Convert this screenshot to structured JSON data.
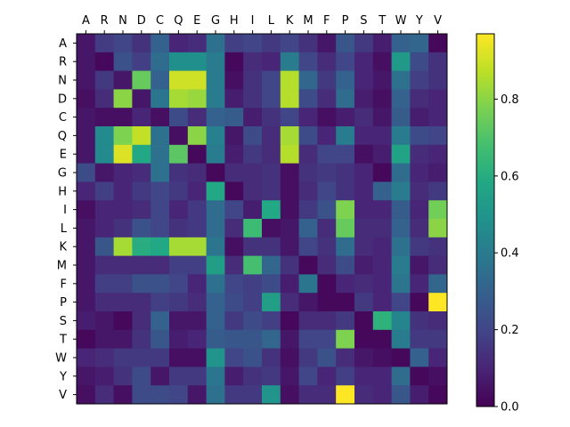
{
  "chart_data": {
    "type": "heatmap",
    "title": "",
    "xlabel": "",
    "ylabel": "",
    "x_categories": [
      "A",
      "R",
      "N",
      "D",
      "C",
      "Q",
      "E",
      "G",
      "H",
      "I",
      "L",
      "K",
      "M",
      "F",
      "P",
      "S",
      "T",
      "W",
      "Y",
      "V"
    ],
    "y_categories": [
      "A",
      "R",
      "N",
      "D",
      "C",
      "Q",
      "E",
      "G",
      "H",
      "I",
      "L",
      "K",
      "M",
      "F",
      "P",
      "S",
      "T",
      "W",
      "Y",
      "V"
    ],
    "x_tick_position": "top",
    "colormap": "viridis",
    "colorbar": {
      "min": 0.0,
      "max": 0.97,
      "ticks": [
        0.0,
        0.2,
        0.4,
        0.6,
        0.8
      ],
      "tick_labels": [
        "0.0",
        "0.2",
        "0.4",
        "0.6",
        "0.8"
      ]
    },
    "values": [
      [
        0.06,
        0.17,
        0.2,
        0.14,
        0.3,
        0.1,
        0.12,
        0.36,
        0.18,
        0.2,
        0.16,
        0.2,
        0.14,
        0.06,
        0.26,
        0.16,
        0.08,
        0.3,
        0.32,
        0.02
      ],
      [
        0.06,
        0.02,
        0.24,
        0.18,
        0.34,
        0.48,
        0.48,
        0.4,
        0.02,
        0.12,
        0.1,
        0.4,
        0.2,
        0.12,
        0.2,
        0.1,
        0.04,
        0.52,
        0.22,
        0.14
      ],
      [
        0.06,
        0.16,
        0.06,
        0.74,
        0.3,
        0.9,
        0.9,
        0.4,
        0.04,
        0.14,
        0.2,
        0.86,
        0.32,
        0.16,
        0.3,
        0.1,
        0.06,
        0.36,
        0.18,
        0.14
      ],
      [
        0.04,
        0.12,
        0.8,
        0.06,
        0.38,
        0.84,
        0.82,
        0.4,
        0.08,
        0.14,
        0.2,
        0.86,
        0.22,
        0.12,
        0.34,
        0.08,
        0.04,
        0.3,
        0.12,
        0.1
      ],
      [
        0.06,
        0.04,
        0.04,
        0.1,
        0.04,
        0.22,
        0.12,
        0.3,
        0.28,
        0.08,
        0.14,
        0.2,
        0.1,
        0.04,
        0.08,
        0.12,
        0.06,
        0.28,
        0.08,
        0.1
      ],
      [
        0.06,
        0.46,
        0.78,
        0.88,
        0.36,
        0.04,
        0.8,
        0.42,
        0.06,
        0.22,
        0.12,
        0.84,
        0.22,
        0.1,
        0.4,
        0.1,
        0.1,
        0.4,
        0.22,
        0.2
      ],
      [
        0.06,
        0.46,
        0.92,
        0.58,
        0.36,
        0.72,
        0.02,
        0.4,
        0.08,
        0.16,
        0.12,
        0.86,
        0.12,
        0.2,
        0.2,
        0.04,
        0.08,
        0.56,
        0.12,
        0.1
      ],
      [
        0.22,
        0.06,
        0.1,
        0.12,
        0.36,
        0.14,
        0.12,
        0.02,
        0.12,
        0.12,
        0.14,
        0.04,
        0.14,
        0.16,
        0.14,
        0.1,
        0.02,
        0.34,
        0.1,
        0.08
      ],
      [
        0.1,
        0.18,
        0.1,
        0.16,
        0.2,
        0.16,
        0.1,
        0.58,
        0.02,
        0.12,
        0.14,
        0.04,
        0.12,
        0.2,
        0.14,
        0.1,
        0.3,
        0.4,
        0.12,
        0.16
      ],
      [
        0.04,
        0.1,
        0.1,
        0.12,
        0.2,
        0.1,
        0.16,
        0.34,
        0.2,
        0.08,
        0.58,
        0.04,
        0.16,
        0.24,
        0.78,
        0.1,
        0.1,
        0.28,
        0.1,
        0.76
      ],
      [
        0.06,
        0.1,
        0.14,
        0.24,
        0.2,
        0.14,
        0.16,
        0.34,
        0.12,
        0.66,
        0.04,
        0.06,
        0.3,
        0.12,
        0.74,
        0.12,
        0.12,
        0.3,
        0.12,
        0.8
      ],
      [
        0.06,
        0.26,
        0.84,
        0.6,
        0.58,
        0.84,
        0.84,
        0.38,
        0.04,
        0.14,
        0.14,
        0.06,
        0.2,
        0.14,
        0.34,
        0.12,
        0.1,
        0.36,
        0.16,
        0.14
      ],
      [
        0.06,
        0.12,
        0.12,
        0.12,
        0.12,
        0.18,
        0.18,
        0.54,
        0.12,
        0.68,
        0.32,
        0.14,
        0.02,
        0.12,
        0.22,
        0.08,
        0.1,
        0.4,
        0.06,
        0.12
      ],
      [
        0.06,
        0.18,
        0.18,
        0.24,
        0.24,
        0.2,
        0.1,
        0.36,
        0.2,
        0.18,
        0.22,
        0.08,
        0.38,
        0.02,
        0.1,
        0.12,
        0.1,
        0.38,
        0.1,
        0.32
      ],
      [
        0.06,
        0.12,
        0.12,
        0.12,
        0.18,
        0.16,
        0.12,
        0.3,
        0.22,
        0.18,
        0.54,
        0.12,
        0.06,
        0.02,
        0.02,
        0.16,
        0.1,
        0.2,
        0.02,
        0.97
      ],
      [
        0.08,
        0.06,
        0.02,
        0.12,
        0.3,
        0.06,
        0.06,
        0.3,
        0.16,
        0.22,
        0.18,
        0.02,
        0.12,
        0.12,
        0.16,
        0.02,
        0.62,
        0.44,
        0.14,
        0.12
      ],
      [
        0.02,
        0.06,
        0.06,
        0.14,
        0.26,
        0.08,
        0.1,
        0.28,
        0.26,
        0.26,
        0.32,
        0.06,
        0.2,
        0.2,
        0.78,
        0.02,
        0.02,
        0.4,
        0.16,
        0.16
      ],
      [
        0.1,
        0.12,
        0.16,
        0.16,
        0.16,
        0.04,
        0.04,
        0.5,
        0.2,
        0.24,
        0.14,
        0.04,
        0.16,
        0.24,
        0.12,
        0.06,
        0.04,
        0.02,
        0.3,
        0.1
      ],
      [
        0.06,
        0.08,
        0.14,
        0.22,
        0.06,
        0.16,
        0.16,
        0.38,
        0.08,
        0.14,
        0.16,
        0.06,
        0.2,
        0.1,
        0.18,
        0.1,
        0.1,
        0.34,
        0.02,
        0.04
      ],
      [
        0.04,
        0.12,
        0.04,
        0.22,
        0.22,
        0.2,
        0.06,
        0.36,
        0.16,
        0.16,
        0.5,
        0.04,
        0.12,
        0.12,
        0.97,
        0.12,
        0.1,
        0.26,
        0.08,
        0.02
      ]
    ]
  }
}
